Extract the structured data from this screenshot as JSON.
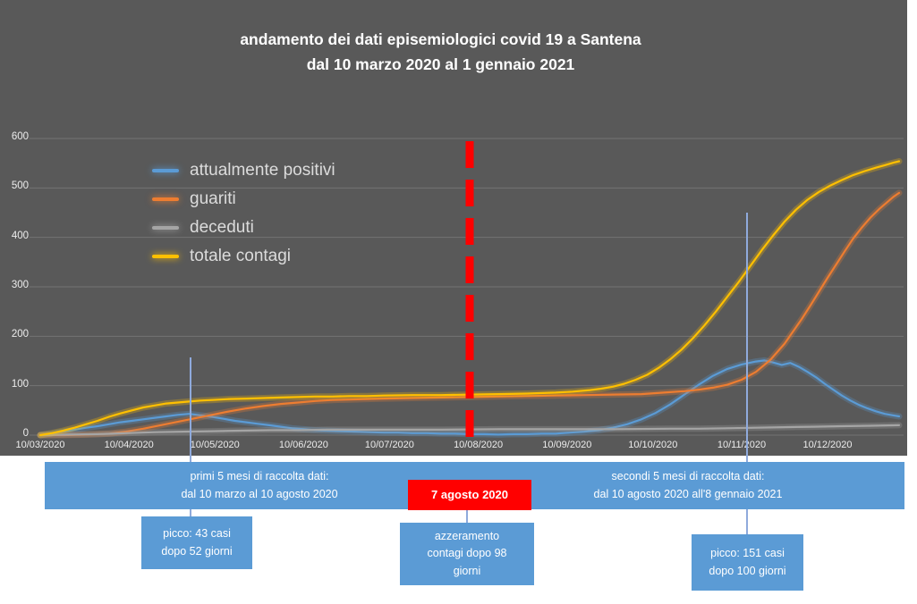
{
  "title": {
    "line1": "andamento dei dati episemiologici covid 19 a Santena",
    "line2": "dal 10 marzo 2020 al 1 gennaio 2021"
  },
  "colors": {
    "background_dark": "#595959",
    "panel_white": "#ffffff",
    "annotation_blue": "#5b9bd5",
    "event_red": "#ff0000",
    "gridline": "#737373",
    "attualmente_positivi": "#5b9bd5",
    "guariti": "#ed7d31",
    "deceduti": "#a5a5a5",
    "totale_contagi": "#ffc000"
  },
  "annotations": {
    "period1": "primi 5 mesi di raccolta dati:\ndal 10 marzo al 10  agosto 2020",
    "event_date": "7 agosto 2020",
    "period2": "secondi 5 mesi di raccolta dati:\ndal 10 agosto 2020 all'8 gennaio 2021",
    "peak1": "picco: 43 casi\ndopo 52 giorni",
    "reset": "azzeramento\ncontagi dopo 98\ngiorni",
    "peak2": "picco: 151 casi\ndopo 100 giorni"
  },
  "chart_data": {
    "type": "line",
    "title": "andamento dei dati episemiologici covid 19 a Santena dal 10 marzo 2020 al 1 gennaio 2021",
    "grid": true,
    "legend_position": "top-left-inside",
    "x_axis": {
      "tick_labels": [
        "10/03/2020",
        "10/04/2020",
        "10/05/2020",
        "10/06/2020",
        "10/07/2020",
        "10/08/2020",
        "10/09/2020",
        "10/10/2020",
        "10/11/2020",
        "10/12/2020"
      ],
      "tick_days": [
        0,
        31,
        61,
        92,
        122,
        153,
        184,
        214,
        245,
        275
      ],
      "day_range": [
        0,
        300
      ]
    },
    "y_axis": {
      "min": 0,
      "max": 600,
      "step": 100,
      "ticks": [
        0,
        100,
        200,
        300,
        400,
        500,
        600
      ]
    },
    "event_line": {
      "day": 150,
      "label": "7 agosto 2020",
      "color": "#ff0000"
    },
    "series": [
      {
        "id": "attualmente-positivi",
        "name": "attualmente positivi",
        "color": "#5b9bd5",
        "points": [
          [
            0,
            0
          ],
          [
            4,
            3
          ],
          [
            8,
            7
          ],
          [
            12,
            11
          ],
          [
            16,
            15
          ],
          [
            20,
            18
          ],
          [
            24,
            22
          ],
          [
            28,
            26
          ],
          [
            32,
            29
          ],
          [
            36,
            32
          ],
          [
            40,
            35
          ],
          [
            44,
            38
          ],
          [
            48,
            41
          ],
          [
            52,
            43
          ],
          [
            56,
            40
          ],
          [
            60,
            37
          ],
          [
            64,
            33
          ],
          [
            68,
            29
          ],
          [
            72,
            26
          ],
          [
            76,
            23
          ],
          [
            80,
            20
          ],
          [
            84,
            17
          ],
          [
            88,
            14
          ],
          [
            92,
            12
          ],
          [
            96,
            10
          ],
          [
            100,
            9
          ],
          [
            105,
            8
          ],
          [
            110,
            7
          ],
          [
            115,
            6
          ],
          [
            120,
            5
          ],
          [
            125,
            5
          ],
          [
            130,
            4
          ],
          [
            135,
            4
          ],
          [
            140,
            3
          ],
          [
            145,
            3
          ],
          [
            150,
            2
          ],
          [
            155,
            2
          ],
          [
            160,
            1
          ],
          [
            165,
            2
          ],
          [
            170,
            2
          ],
          [
            175,
            3
          ],
          [
            180,
            3
          ],
          [
            185,
            5
          ],
          [
            190,
            7
          ],
          [
            195,
            10
          ],
          [
            200,
            15
          ],
          [
            205,
            22
          ],
          [
            210,
            32
          ],
          [
            215,
            45
          ],
          [
            220,
            62
          ],
          [
            225,
            82
          ],
          [
            230,
            102
          ],
          [
            235,
            120
          ],
          [
            240,
            134
          ],
          [
            245,
            143
          ],
          [
            250,
            149
          ],
          [
            253,
            151
          ],
          [
            256,
            147
          ],
          [
            259,
            142
          ],
          [
            262,
            146
          ],
          [
            265,
            138
          ],
          [
            268,
            128
          ],
          [
            271,
            117
          ],
          [
            274,
            104
          ],
          [
            277,
            92
          ],
          [
            280,
            80
          ],
          [
            283,
            70
          ],
          [
            286,
            61
          ],
          [
            289,
            54
          ],
          [
            292,
            48
          ],
          [
            295,
            43
          ],
          [
            298,
            40
          ],
          [
            300,
            38
          ]
        ]
      },
      {
        "id": "guariti",
        "name": "guariti",
        "color": "#ed7d31",
        "points": [
          [
            0,
            0
          ],
          [
            8,
            0
          ],
          [
            16,
            1
          ],
          [
            24,
            3
          ],
          [
            30,
            7
          ],
          [
            36,
            13
          ],
          [
            42,
            20
          ],
          [
            48,
            27
          ],
          [
            54,
            34
          ],
          [
            60,
            41
          ],
          [
            66,
            48
          ],
          [
            72,
            54
          ],
          [
            78,
            59
          ],
          [
            84,
            63
          ],
          [
            90,
            66
          ],
          [
            96,
            69
          ],
          [
            102,
            71
          ],
          [
            108,
            72
          ],
          [
            114,
            73
          ],
          [
            120,
            74
          ],
          [
            130,
            75
          ],
          [
            140,
            76
          ],
          [
            150,
            77
          ],
          [
            160,
            78
          ],
          [
            170,
            79
          ],
          [
            180,
            80
          ],
          [
            190,
            81
          ],
          [
            200,
            82
          ],
          [
            210,
            83
          ],
          [
            215,
            85
          ],
          [
            220,
            87
          ],
          [
            225,
            89
          ],
          [
            230,
            92
          ],
          [
            235,
            96
          ],
          [
            240,
            102
          ],
          [
            245,
            112
          ],
          [
            250,
            128
          ],
          [
            255,
            152
          ],
          [
            260,
            185
          ],
          [
            263,
            210
          ],
          [
            266,
            235
          ],
          [
            269,
            262
          ],
          [
            272,
            290
          ],
          [
            275,
            318
          ],
          [
            278,
            345
          ],
          [
            281,
            372
          ],
          [
            284,
            398
          ],
          [
            287,
            420
          ],
          [
            290,
            440
          ],
          [
            293,
            457
          ],
          [
            296,
            472
          ],
          [
            298,
            482
          ],
          [
            300,
            490
          ]
        ]
      },
      {
        "id": "deceduti",
        "name": "deceduti",
        "color": "#a5a5a5",
        "points": [
          [
            0,
            0
          ],
          [
            10,
            1
          ],
          [
            20,
            2
          ],
          [
            30,
            4
          ],
          [
            40,
            6
          ],
          [
            50,
            7
          ],
          [
            60,
            8
          ],
          [
            70,
            9
          ],
          [
            80,
            10
          ],
          [
            90,
            10
          ],
          [
            100,
            11
          ],
          [
            120,
            11
          ],
          [
            140,
            11
          ],
          [
            160,
            12
          ],
          [
            180,
            12
          ],
          [
            200,
            12
          ],
          [
            220,
            13
          ],
          [
            230,
            13
          ],
          [
            240,
            14
          ],
          [
            250,
            15
          ],
          [
            260,
            16
          ],
          [
            270,
            17
          ],
          [
            280,
            18
          ],
          [
            290,
            19
          ],
          [
            300,
            20
          ]
        ]
      },
      {
        "id": "totale-contagi",
        "name": "totale contagi",
        "color": "#ffc000",
        "points": [
          [
            0,
            0
          ],
          [
            4,
            4
          ],
          [
            8,
            9
          ],
          [
            12,
            15
          ],
          [
            16,
            22
          ],
          [
            20,
            29
          ],
          [
            24,
            37
          ],
          [
            28,
            44
          ],
          [
            32,
            50
          ],
          [
            36,
            56
          ],
          [
            40,
            60
          ],
          [
            44,
            64
          ],
          [
            48,
            66
          ],
          [
            52,
            68
          ],
          [
            56,
            70
          ],
          [
            60,
            71
          ],
          [
            66,
            73
          ],
          [
            72,
            74
          ],
          [
            78,
            75
          ],
          [
            84,
            76
          ],
          [
            90,
            77
          ],
          [
            96,
            78
          ],
          [
            102,
            78
          ],
          [
            108,
            79
          ],
          [
            114,
            79
          ],
          [
            120,
            80
          ],
          [
            130,
            81
          ],
          [
            140,
            81
          ],
          [
            150,
            82
          ],
          [
            160,
            83
          ],
          [
            170,
            84
          ],
          [
            180,
            86
          ],
          [
            186,
            88
          ],
          [
            192,
            91
          ],
          [
            196,
            94
          ],
          [
            200,
            98
          ],
          [
            204,
            104
          ],
          [
            208,
            112
          ],
          [
            212,
            122
          ],
          [
            216,
            136
          ],
          [
            220,
            153
          ],
          [
            224,
            173
          ],
          [
            228,
            196
          ],
          [
            232,
            222
          ],
          [
            236,
            250
          ],
          [
            240,
            280
          ],
          [
            244,
            310
          ],
          [
            248,
            342
          ],
          [
            252,
            374
          ],
          [
            256,
            404
          ],
          [
            260,
            432
          ],
          [
            264,
            456
          ],
          [
            268,
            476
          ],
          [
            272,
            492
          ],
          [
            276,
            505
          ],
          [
            280,
            516
          ],
          [
            284,
            526
          ],
          [
            288,
            534
          ],
          [
            292,
            541
          ],
          [
            295,
            546
          ],
          [
            298,
            551
          ],
          [
            300,
            554
          ]
        ]
      }
    ]
  }
}
